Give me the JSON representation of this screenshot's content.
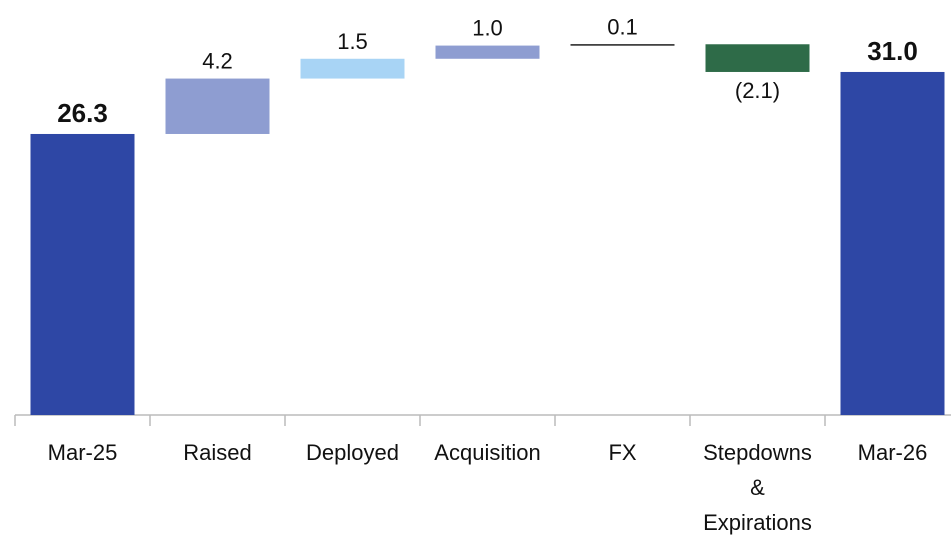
{
  "chart_data": {
    "type": "waterfall",
    "categories": [
      "Mar-25",
      "Raised",
      "Deployed",
      "Acquisition",
      "FX",
      "Stepdowns & Expirations",
      "Mar-26"
    ],
    "values": [
      26.3,
      4.2,
      1.5,
      1.0,
      0.1,
      -2.1,
      31.0
    ],
    "value_labels": [
      "26.3",
      "4.2",
      "1.5",
      "1.0",
      "0.1",
      "(2.1)",
      "31.0"
    ],
    "colors": [
      "#2e47a5",
      "#8e9dd1",
      "#a8d4f5",
      "#8e9dd1",
      "#000000",
      "#2e6b48",
      "#2e47a5"
    ],
    "ylim": [
      5,
      36
    ]
  }
}
